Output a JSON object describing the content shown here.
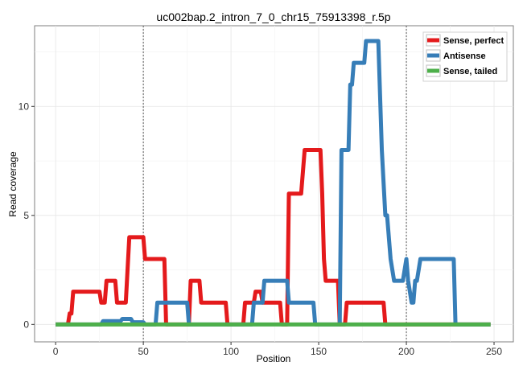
{
  "chart_data": {
    "type": "line",
    "title": "uc002bap.2_intron_7_0_chr15_75913398_r.5p",
    "xlabel": "Position",
    "ylabel": "Read coverage",
    "xlim": [
      -12,
      261
    ],
    "ylim": [
      -0.8,
      13.7
    ],
    "x_ticks": [
      0,
      50,
      100,
      150,
      200,
      250
    ],
    "y_ticks": [
      0,
      5,
      10
    ],
    "vlines": [
      50,
      200
    ],
    "grid": true,
    "legend_position": "top-right",
    "series": [
      {
        "name": "Sense, perfect",
        "color": "#E41A1C",
        "points": [
          [
            0,
            0
          ],
          [
            7,
            0
          ],
          [
            8,
            0.5
          ],
          [
            9,
            0.5
          ],
          [
            10,
            1.5
          ],
          [
            25,
            1.5
          ],
          [
            26,
            1
          ],
          [
            28,
            1
          ],
          [
            29,
            2
          ],
          [
            34,
            2
          ],
          [
            35,
            1
          ],
          [
            40,
            1
          ],
          [
            42,
            4
          ],
          [
            50,
            4
          ],
          [
            51,
            3
          ],
          [
            62,
            3
          ],
          [
            63,
            0
          ],
          [
            64,
            0
          ],
          [
            65,
            0
          ],
          [
            67,
            0
          ],
          [
            68,
            0
          ],
          [
            76,
            0
          ],
          [
            77,
            2
          ],
          [
            82,
            2
          ],
          [
            83,
            1
          ],
          [
            97,
            1
          ],
          [
            98,
            0
          ],
          [
            107,
            0
          ],
          [
            108,
            1
          ],
          [
            113,
            1
          ],
          [
            114,
            1.5
          ],
          [
            117,
            1.5
          ],
          [
            118,
            1
          ],
          [
            128,
            1
          ],
          [
            129,
            0
          ],
          [
            132,
            0
          ],
          [
            133,
            6
          ],
          [
            140,
            6
          ],
          [
            142,
            8
          ],
          [
            151,
            8
          ],
          [
            152,
            6
          ],
          [
            153,
            3
          ],
          [
            154,
            2
          ],
          [
            161,
            2
          ],
          [
            162,
            0
          ],
          [
            165,
            0
          ],
          [
            166,
            1
          ],
          [
            187,
            1
          ],
          [
            188,
            0
          ],
          [
            248,
            0
          ]
        ]
      },
      {
        "name": "Antisense",
        "color": "#377EB8",
        "points": [
          [
            0,
            0
          ],
          [
            26,
            0
          ],
          [
            27,
            0.15
          ],
          [
            37,
            0.15
          ],
          [
            38,
            0.25
          ],
          [
            43,
            0.25
          ],
          [
            44,
            0.1
          ],
          [
            50,
            0.1
          ],
          [
            51,
            0
          ],
          [
            57,
            0
          ],
          [
            58,
            1
          ],
          [
            75,
            1
          ],
          [
            76,
            0
          ],
          [
            112,
            0
          ],
          [
            113,
            1
          ],
          [
            118,
            1
          ],
          [
            119,
            2
          ],
          [
            132,
            2
          ],
          [
            133,
            1
          ],
          [
            147,
            1
          ],
          [
            148,
            0
          ],
          [
            162,
            0
          ],
          [
            163,
            8
          ],
          [
            167,
            8
          ],
          [
            168,
            11
          ],
          [
            169,
            11
          ],
          [
            170,
            12
          ],
          [
            176,
            12
          ],
          [
            177,
            13
          ],
          [
            184,
            13
          ],
          [
            186,
            8
          ],
          [
            188,
            5
          ],
          [
            189,
            5
          ],
          [
            191,
            3
          ],
          [
            193,
            2
          ],
          [
            198,
            2
          ],
          [
            200,
            3
          ],
          [
            201,
            2
          ],
          [
            203,
            1
          ],
          [
            204,
            1
          ],
          [
            205,
            2
          ],
          [
            206,
            2
          ],
          [
            208,
            3
          ],
          [
            227,
            3
          ],
          [
            228,
            0
          ],
          [
            248,
            0
          ]
        ]
      },
      {
        "name": "Sense, tailed",
        "color": "#4DAF4A",
        "points": [
          [
            0,
            0
          ],
          [
            248,
            0
          ]
        ]
      }
    ]
  }
}
